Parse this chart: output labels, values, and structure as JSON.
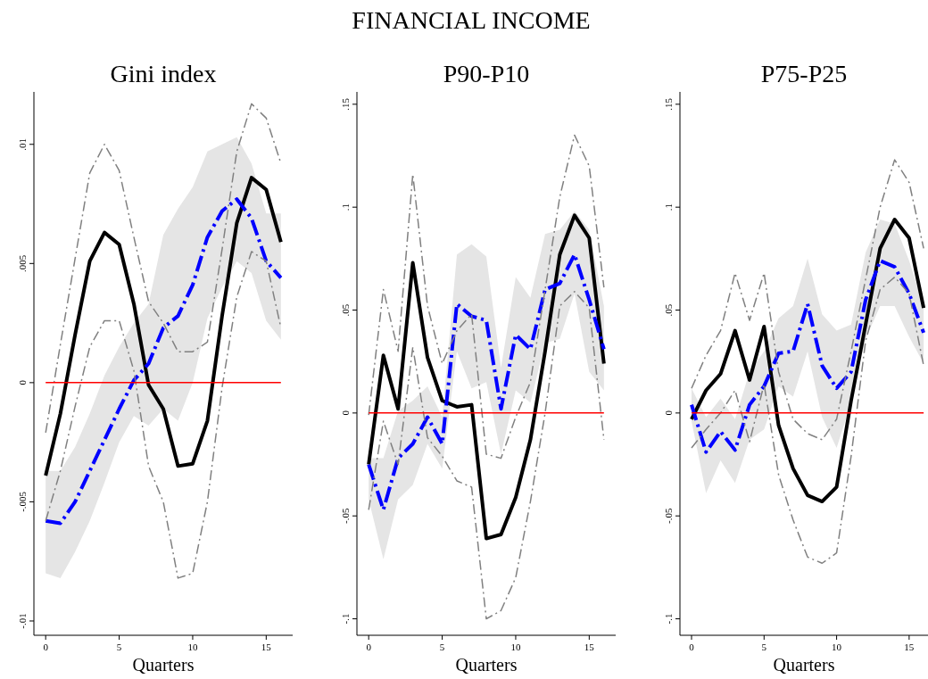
{
  "chart_data": [
    {
      "type": "line",
      "title": "Gini index",
      "xlabel": "Quarters",
      "annotations": [
        "FINANCIAL INCOME"
      ],
      "x": [
        0,
        1,
        2,
        3,
        4,
        5,
        6,
        7,
        8,
        9,
        10,
        11,
        12,
        13,
        14,
        15,
        16
      ],
      "xlim": [
        -0.8,
        16.8
      ],
      "xticks": [
        0,
        5,
        10,
        15
      ],
      "ylim": [
        -0.0106,
        0.0122
      ],
      "yticks": [
        {
          "value": -0.01,
          "label": "-.01"
        },
        {
          "value": -0.005,
          "label": "-.005"
        },
        {
          "value": 0,
          "label": "0"
        },
        {
          "value": 0.005,
          "label": ".005"
        },
        {
          "value": 0.01,
          "label": ".01"
        }
      ],
      "series": [
        {
          "color": "#808080",
          "line_style": "dashed",
          "values": [
            -0.0021,
            0.0016,
            0.0052,
            0.0088,
            0.01,
            0.0089,
            0.0061,
            0.0034,
            0.0025,
            0.0013,
            0.0013,
            0.0017,
            0.0056,
            0.0097,
            0.0117,
            0.0111,
            0.0092
          ]
        },
        {
          "color": "#808080",
          "line_style": "dashed",
          "values": [
            -0.0058,
            -0.0037,
            -0.001,
            0.0015,
            0.0026,
            0.0026,
            0.0005,
            -0.0035,
            -0.005,
            -0.0082,
            -0.008,
            -0.005,
            -0.0002,
            0.0036,
            0.0055,
            0.0051,
            0.0023
          ]
        },
        {
          "color": "#0000ff",
          "line_style": "dashed",
          "values": [
            -0.0058,
            -0.0059,
            -0.005,
            -0.0037,
            -0.0024,
            -0.0011,
            0.0001,
            0.0008,
            0.0023,
            0.0028,
            0.0041,
            0.0061,
            0.0072,
            0.0077,
            0.0069,
            0.0051,
            0.0044
          ],
          "lower": [
            -0.008,
            -0.0082,
            -0.0071,
            -0.0058,
            -0.0042,
            -0.0025,
            -0.0014,
            -0.0018,
            -0.0011,
            -0.0016,
            0.0,
            0.0027,
            0.004,
            0.0051,
            0.0046,
            0.0026,
            0.0018
          ],
          "upper": [
            -0.0037,
            -0.0037,
            -0.0027,
            -0.0013,
            0.0003,
            0.0015,
            0.0025,
            0.0033,
            0.0062,
            0.0073,
            0.0082,
            0.0097,
            0.01,
            0.0103,
            0.0092,
            0.0071,
            0.0071
          ]
        },
        {
          "color": "#000000",
          "line_style": "solid",
          "values": [
            -0.0039,
            -0.0013,
            0.002,
            0.0051,
            0.0063,
            0.0058,
            0.0033,
            -0.0001,
            -0.0011,
            -0.0035,
            -0.0034,
            -0.0016,
            0.0028,
            0.0067,
            0.0086,
            0.0081,
            0.0059
          ]
        }
      ],
      "ref_lines": [
        {
          "axis": "y",
          "value": 0,
          "color": "#ff0000"
        }
      ],
      "grid": false
    },
    {
      "type": "line",
      "title": "P90-P10",
      "xlabel": "Quarters",
      "x": [
        0,
        1,
        2,
        3,
        4,
        5,
        6,
        7,
        8,
        9,
        10,
        11,
        12,
        13,
        14,
        15,
        16
      ],
      "xlim": [
        -0.8,
        16.8
      ],
      "xticks": [
        0,
        5,
        10,
        15
      ],
      "ylim": [
        -0.108,
        0.156
      ],
      "yticks": [
        {
          "value": -0.1,
          "label": "-.1"
        },
        {
          "value": -0.05,
          "label": "-.05"
        },
        0,
        {
          "value": 0.05,
          "label": ".05"
        },
        {
          "value": 0.1,
          "label": ".1"
        },
        {
          "value": 0.15,
          "label": ".15"
        }
      ],
      "series": [
        {
          "color": "#808080",
          "line_style": "dashed",
          "values": [
            -0.001,
            0.06,
            0.03,
            0.116,
            0.052,
            0.024,
            0.04,
            0.048,
            -0.02,
            -0.022,
            -0.002,
            0.015,
            0.06,
            0.105,
            0.135,
            0.12,
            0.061
          ]
        },
        {
          "color": "#808080",
          "line_style": "dashed",
          "values": [
            -0.047,
            -0.004,
            -0.025,
            0.032,
            -0.012,
            -0.021,
            -0.033,
            -0.036,
            -0.1,
            -0.096,
            -0.08,
            -0.043,
            0.0,
            0.052,
            0.059,
            0.051,
            -0.013
          ]
        },
        {
          "color": "#0000ff",
          "line_style": "dashed",
          "values": [
            -0.025,
            -0.047,
            -0.022,
            -0.015,
            -0.002,
            -0.015,
            0.053,
            0.047,
            0.045,
            0.002,
            0.038,
            0.031,
            0.06,
            0.063,
            0.077,
            0.055,
            0.031
          ],
          "lower": [
            -0.042,
            -0.071,
            -0.042,
            -0.035,
            -0.015,
            -0.027,
            0.03,
            0.012,
            0.015,
            -0.02,
            0.011,
            0.005,
            0.034,
            0.036,
            0.058,
            0.02,
            0.011
          ],
          "upper": [
            -0.022,
            -0.022,
            0.001,
            0.006,
            0.013,
            -0.002,
            0.077,
            0.082,
            0.076,
            0.022,
            0.066,
            0.056,
            0.087,
            0.089,
            0.098,
            0.089,
            0.052
          ]
        },
        {
          "color": "#000000",
          "line_style": "solid",
          "values": [
            -0.025,
            0.028,
            0.002,
            0.073,
            0.027,
            0.006,
            0.003,
            0.004,
            -0.061,
            -0.059,
            -0.041,
            -0.013,
            0.03,
            0.077,
            0.096,
            0.085,
            0.024
          ]
        }
      ],
      "ref_lines": [
        {
          "axis": "y",
          "value": 0,
          "color": "#ff0000"
        }
      ],
      "grid": false
    },
    {
      "type": "line",
      "title": "P75-P25",
      "xlabel": "Quarters",
      "x": [
        0,
        1,
        2,
        3,
        4,
        5,
        6,
        7,
        8,
        9,
        10,
        11,
        12,
        13,
        14,
        15,
        16
      ],
      "xlim": [
        -0.8,
        16.3
      ],
      "xticks": [
        0,
        5,
        10,
        15
      ],
      "ylim": [
        -0.108,
        0.156
      ],
      "yticks": [
        {
          "value": -0.1,
          "label": "-.1"
        },
        {
          "value": -0.05,
          "label": "-.05"
        },
        0,
        {
          "value": 0.05,
          "label": ".05"
        },
        {
          "value": 0.1,
          "label": ".1"
        },
        {
          "value": 0.15,
          "label": ".15"
        }
      ],
      "series": [
        {
          "color": "#808080",
          "line_style": "dashed",
          "values": [
            0.012,
            0.028,
            0.04,
            0.068,
            0.045,
            0.068,
            0.02,
            -0.003,
            -0.01,
            -0.013,
            -0.003,
            0.03,
            0.065,
            0.1,
            0.123,
            0.112,
            0.08
          ]
        },
        {
          "color": "#808080",
          "line_style": "dashed",
          "values": [
            -0.017,
            -0.008,
            0.0,
            0.011,
            -0.014,
            0.014,
            -0.03,
            -0.052,
            -0.07,
            -0.073,
            -0.068,
            -0.021,
            0.035,
            0.06,
            0.066,
            0.058,
            0.023
          ]
        },
        {
          "color": "#0000ff",
          "line_style": "dashed",
          "values": [
            0.004,
            -0.019,
            -0.009,
            -0.018,
            0.004,
            0.013,
            0.029,
            0.03,
            0.053,
            0.023,
            0.012,
            0.02,
            0.055,
            0.074,
            0.071,
            0.058,
            0.039
          ],
          "lower": [
            -0.004,
            -0.039,
            -0.023,
            -0.034,
            -0.013,
            -0.008,
            0.013,
            0.008,
            0.03,
            -0.002,
            -0.017,
            0.005,
            0.036,
            0.052,
            0.052,
            0.037,
            0.024
          ],
          "upper": [
            0.012,
            -0.002,
            0.007,
            -0.003,
            0.02,
            0.03,
            0.046,
            0.052,
            0.075,
            0.048,
            0.04,
            0.043,
            0.078,
            0.094,
            0.092,
            0.074,
            0.052
          ]
        },
        {
          "color": "#000000",
          "line_style": "solid",
          "values": [
            -0.003,
            0.011,
            0.019,
            0.04,
            0.016,
            0.042,
            -0.006,
            -0.027,
            -0.04,
            -0.043,
            -0.036,
            0.006,
            0.043,
            0.08,
            0.094,
            0.085,
            0.051
          ]
        }
      ],
      "ref_lines": [
        {
          "axis": "y",
          "value": 0,
          "color": "#ff0000"
        }
      ],
      "grid": false
    }
  ]
}
